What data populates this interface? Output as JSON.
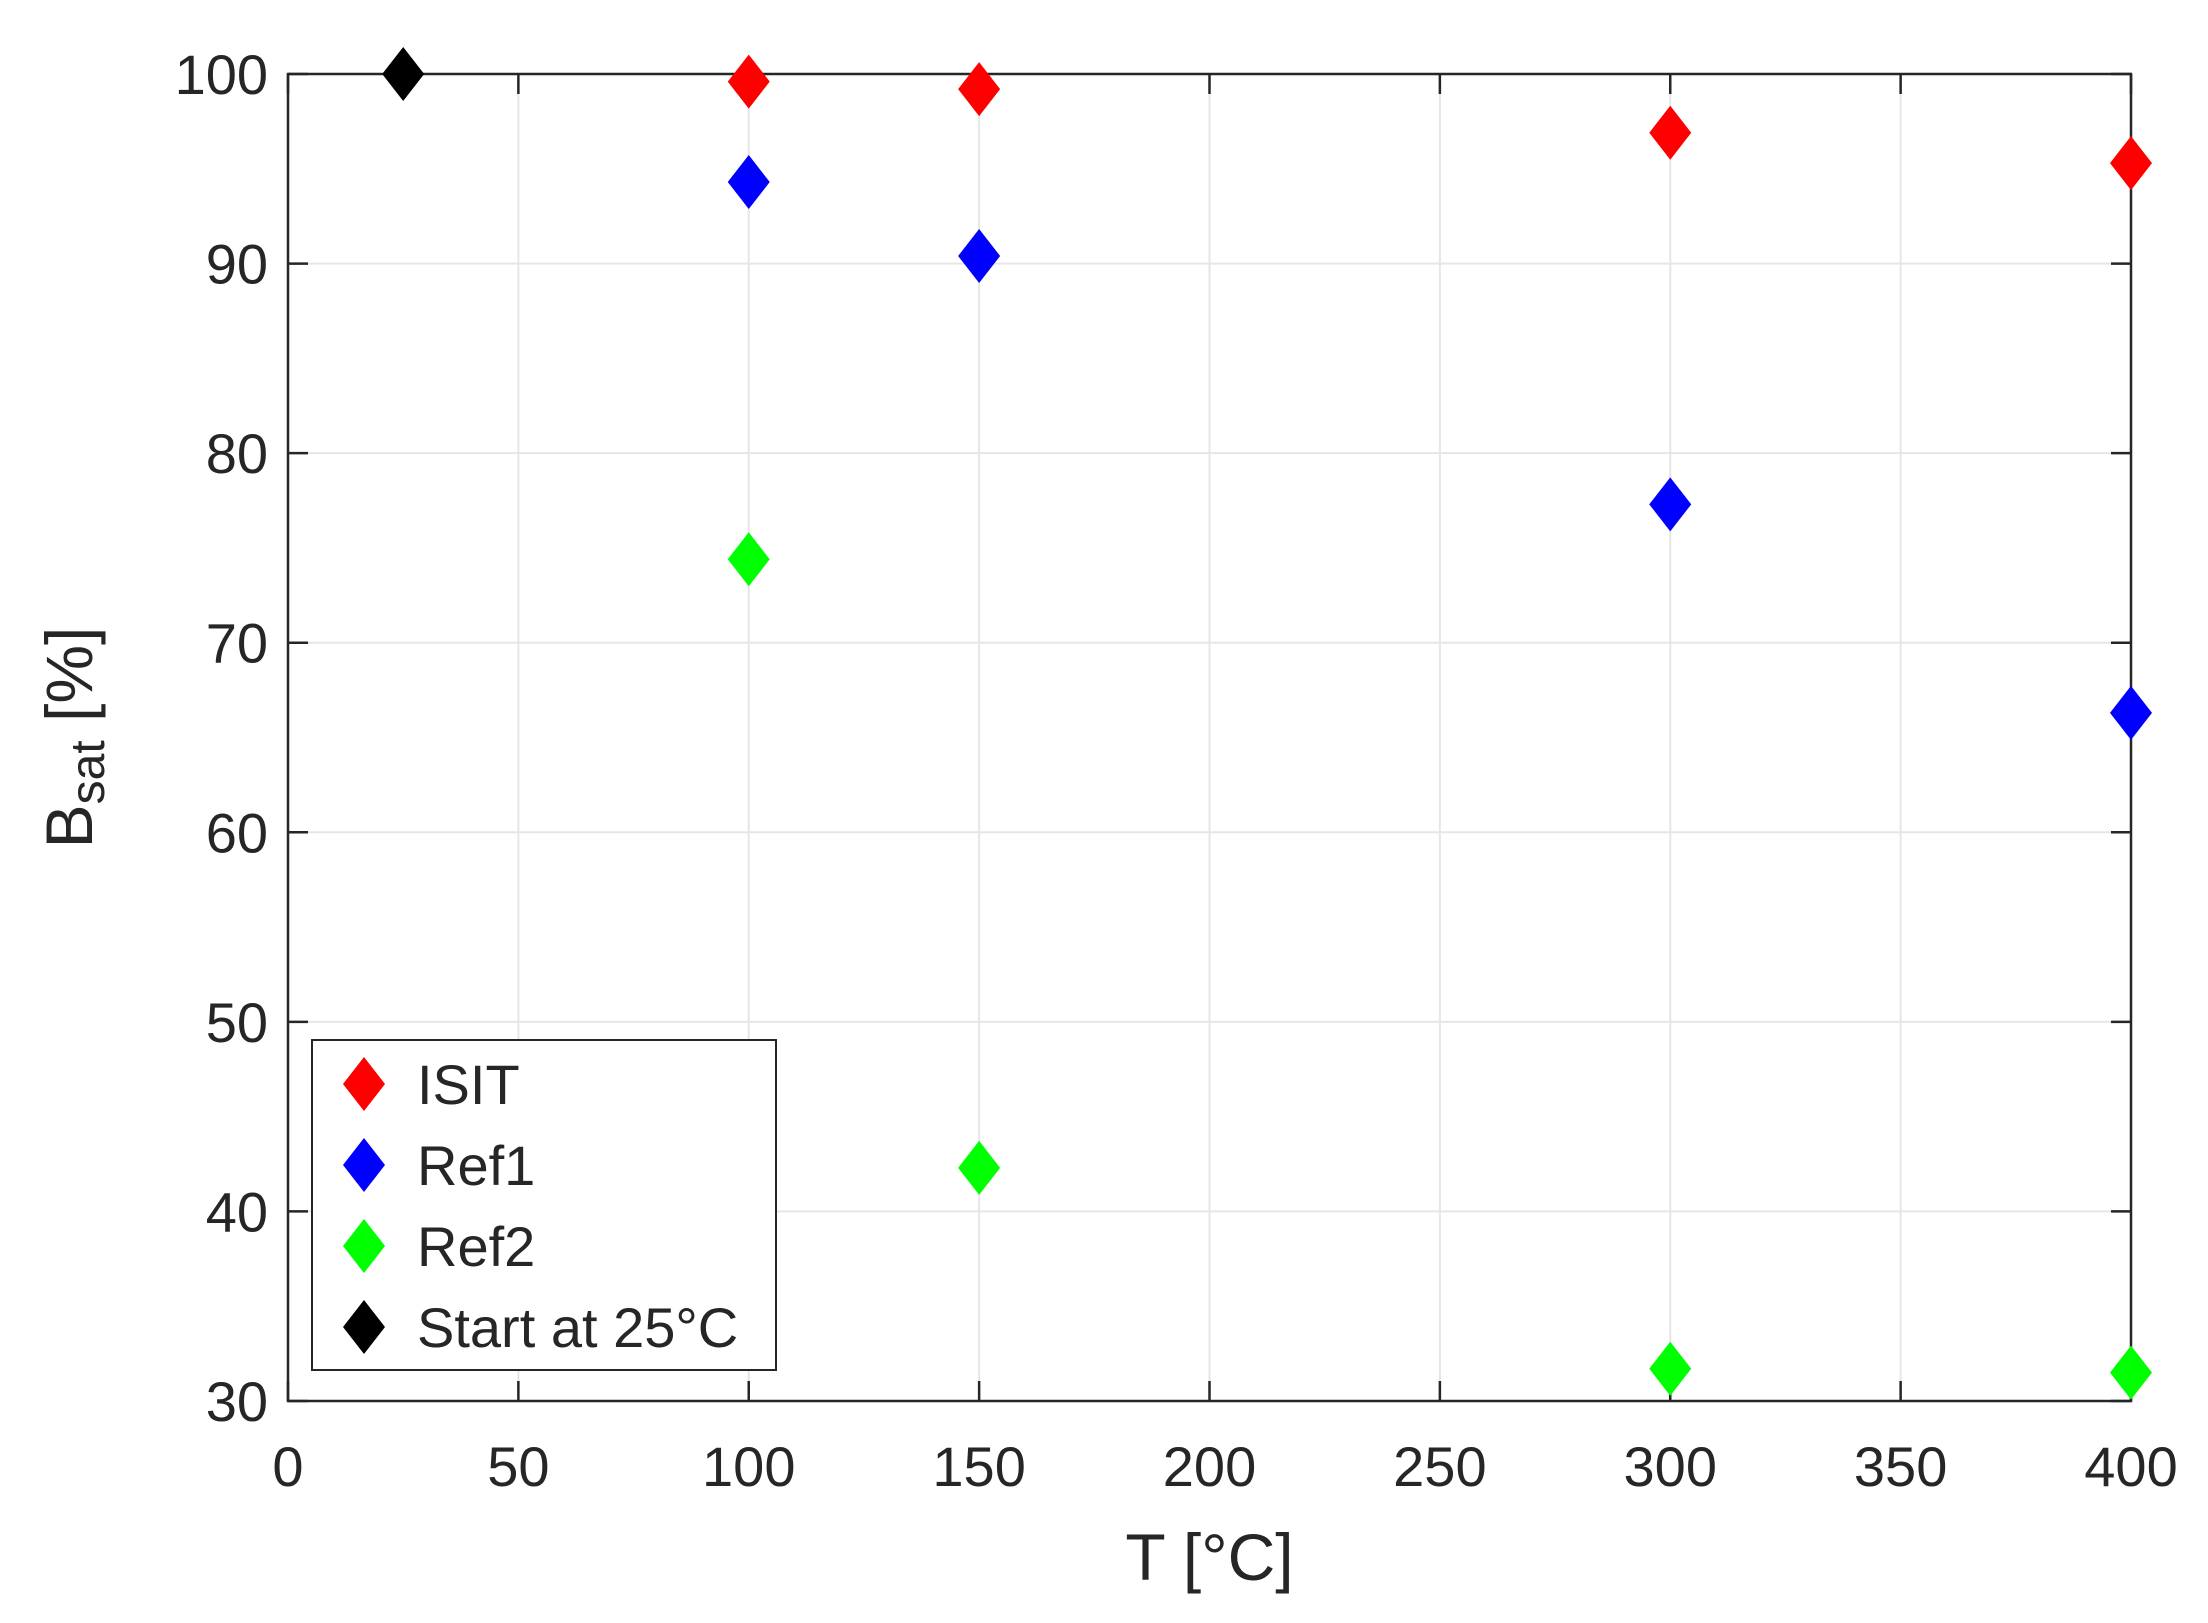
{
  "chart_data": {
    "type": "scatter",
    "title": "",
    "xlabel": "T [°C]",
    "ylabel_base": "B",
    "ylabel_sub": "sat",
    "ylabel_rest": " [%]",
    "xlim": [
      0,
      400
    ],
    "ylim": [
      30,
      100
    ],
    "xticks": [
      0,
      50,
      100,
      150,
      200,
      250,
      300,
      350,
      400
    ],
    "yticks": [
      30,
      40,
      50,
      60,
      70,
      80,
      90,
      100
    ],
    "grid": true,
    "marker": "diamond",
    "legend_position": "bottom-left",
    "series": [
      {
        "name": "ISIT",
        "color": "#ff0000",
        "x": [
          100,
          150,
          300,
          400
        ],
        "y": [
          99.6,
          99.2,
          96.9,
          95.3
        ]
      },
      {
        "name": "Ref1",
        "color": "#0000ff",
        "x": [
          100,
          150,
          300,
          400
        ],
        "y": [
          94.3,
          90.4,
          77.3,
          66.3
        ]
      },
      {
        "name": "Ref2",
        "color": "#00ff00",
        "x": [
          100,
          150,
          300,
          400
        ],
        "y": [
          74.4,
          42.3,
          31.7,
          31.5
        ]
      },
      {
        "name": "Start at 25°C",
        "color": "#000000",
        "x": [
          25
        ],
        "y": [
          100
        ]
      }
    ]
  }
}
